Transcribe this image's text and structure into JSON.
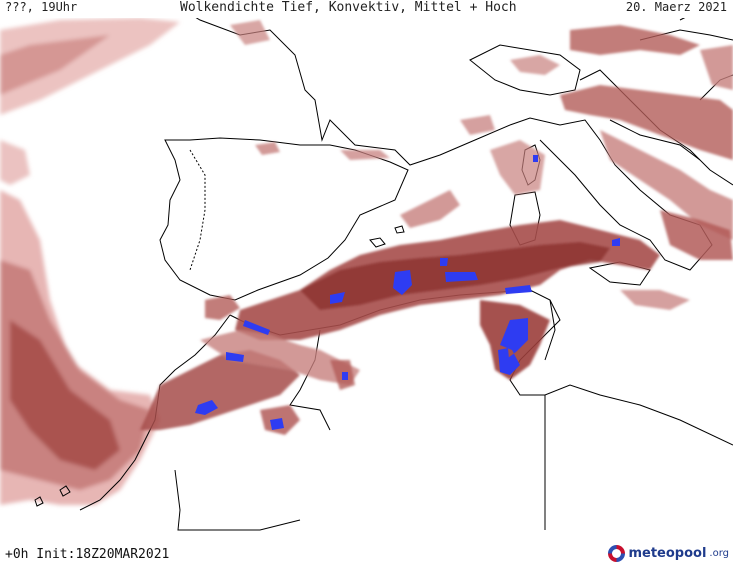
{
  "header": {
    "run_label": "???, 19Uhr",
    "title": "Wolkendichte  Tief, Konvektiv, Mittel + Hoch",
    "date": "20. Maerz 2021"
  },
  "footer": {
    "init": "+0h  Init:18Z20MAR2021",
    "logo_name": "meteopool",
    "logo_tld": ".org"
  },
  "colors": {
    "cloud_light": "#e9b8b6",
    "cloud_mid": "#c7807d",
    "cloud_dark": "#9b3f3c",
    "convective": "#2e3cf2",
    "coast": "#000000",
    "background": "#ffffff"
  },
  "icons": [
    "meteopool-logo-icon"
  ]
}
